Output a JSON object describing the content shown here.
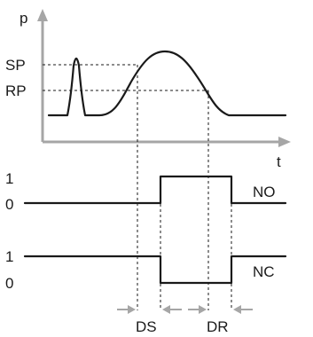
{
  "labels": {
    "p_axis": "p",
    "t_axis": "t",
    "sp": "SP",
    "rp": "RP",
    "no_one": "1",
    "no_zero": "0",
    "no": "NO",
    "nc_one": "1",
    "nc_zero": "0",
    "nc": "NC",
    "ds": "DS",
    "dr": "DR"
  },
  "colors": {
    "axis": "#a6a6a6",
    "signal": "#1a1a1a",
    "arrows": "#a6a6a6"
  }
}
